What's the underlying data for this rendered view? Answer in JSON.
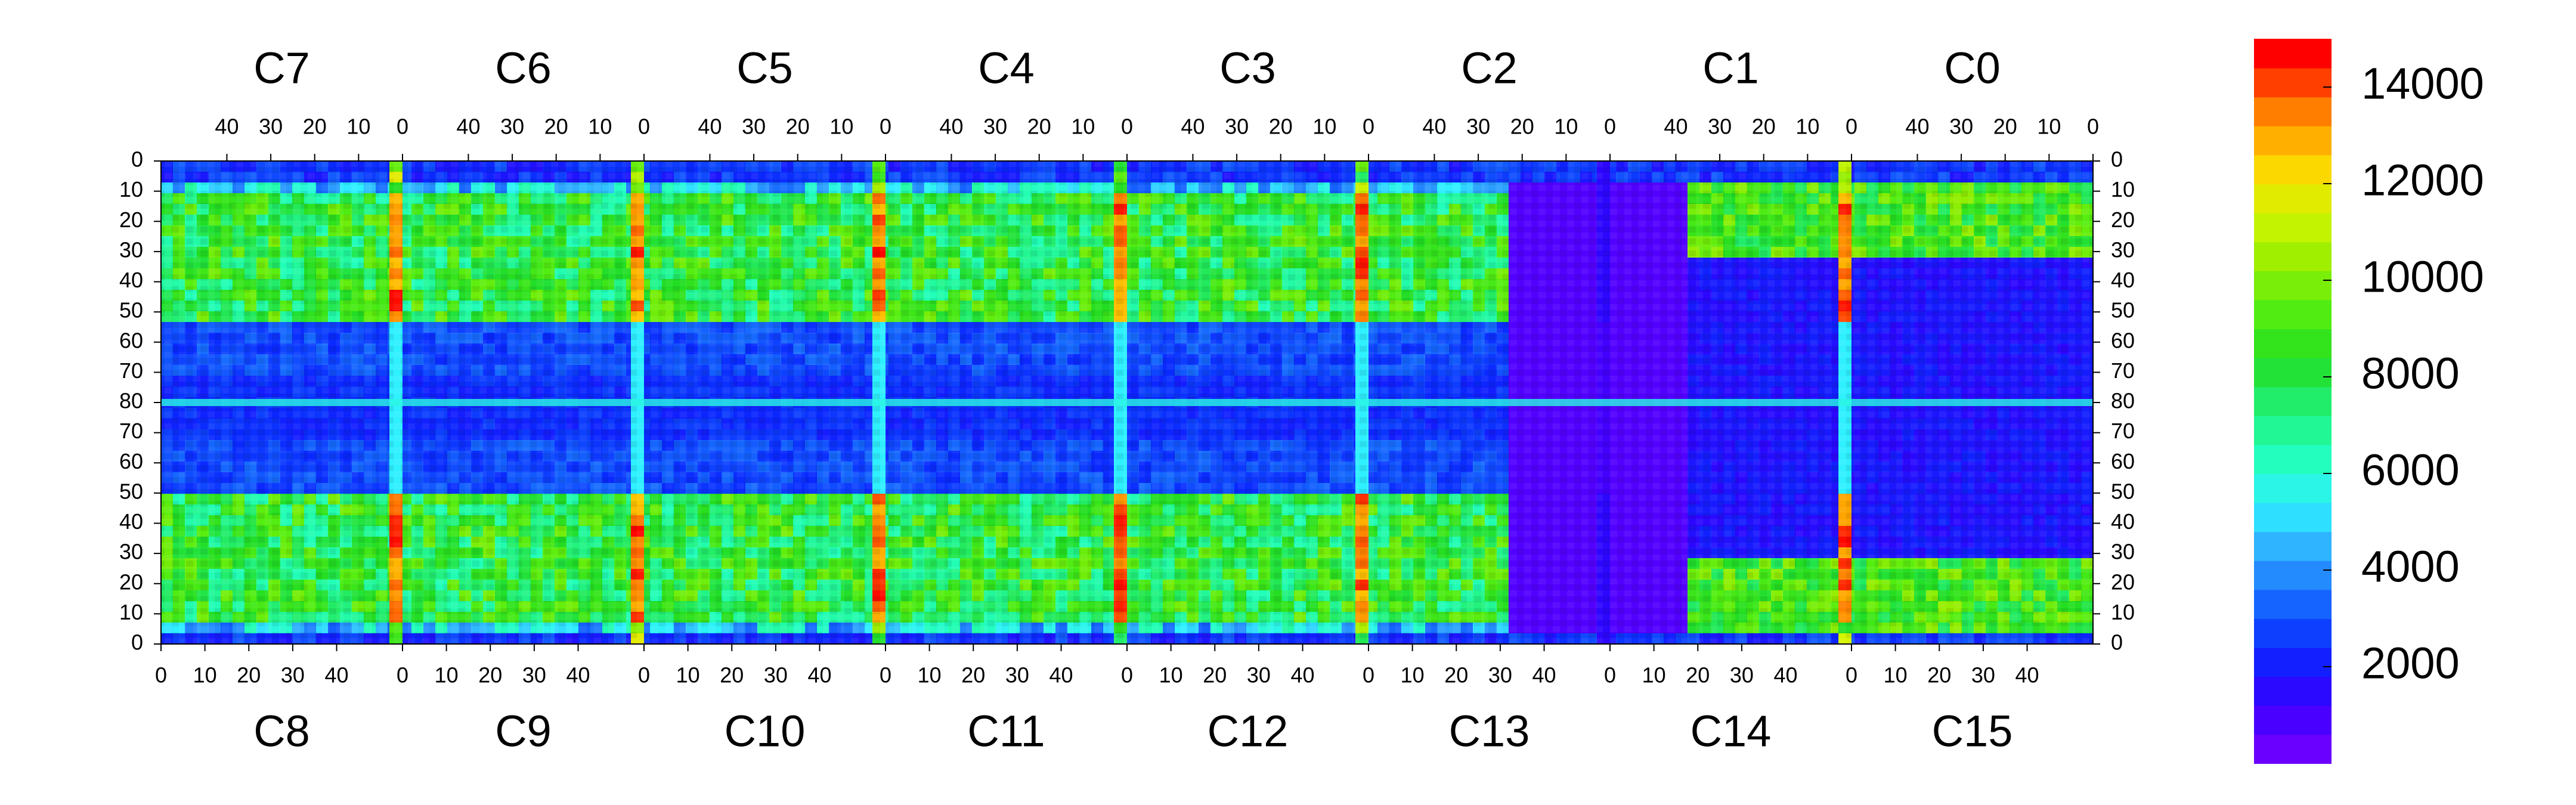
{
  "chart_data": {
    "type": "heatmap",
    "title": "",
    "xlabel": "",
    "ylabel": "",
    "top_chips": [
      "C7",
      "C6",
      "C5",
      "C4",
      "C3",
      "C2",
      "C1",
      "C0"
    ],
    "bottom_chips": [
      "C8",
      "C9",
      "C10",
      "C11",
      "C12",
      "C13",
      "C14",
      "C15"
    ],
    "top_tick_labels": [
      "40",
      "30",
      "20",
      "10",
      "0"
    ],
    "bottom_tick_labels": [
      "0",
      "10",
      "20",
      "30",
      "40"
    ],
    "y_tick_labels": [
      "0",
      "10",
      "20",
      "30",
      "40",
      "50",
      "60",
      "70",
      "80",
      "70",
      "60",
      "50",
      "40",
      "30",
      "20",
      "10",
      "0"
    ],
    "colorbar": {
      "range": [
        0,
        15000
      ],
      "tick_values": [
        2000,
        4000,
        6000,
        8000,
        10000,
        12000,
        14000
      ],
      "tick_labels": [
        "2000",
        "4000",
        "6000",
        "8000",
        "10000",
        "12000",
        "14000"
      ]
    },
    "grid": false,
    "legend": "colorbar-right",
    "colors": {
      "background": "#4a0ce8",
      "low": "#6a00ff",
      "high": "#ff0000"
    }
  }
}
